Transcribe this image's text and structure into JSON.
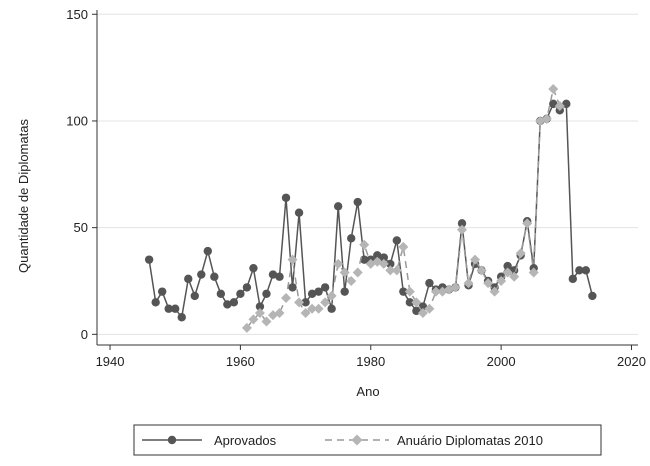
{
  "chart_data": {
    "type": "line",
    "xlabel": "Ano",
    "ylabel": "Quantidade de Diplomatas",
    "xlim": [
      1938,
      2021
    ],
    "ylim": [
      -5,
      152
    ],
    "xticks": [
      1940,
      1960,
      1980,
      2000,
      2020
    ],
    "yticks": [
      0,
      50,
      100,
      150
    ],
    "grid": true,
    "legend_position": "bottom",
    "series": [
      {
        "name": "Aprovados",
        "color": "#555555",
        "marker": "circle",
        "line": "solid",
        "x": [
          1946,
          1947,
          1948,
          1949,
          1950,
          1951,
          1952,
          1953,
          1954,
          1955,
          1956,
          1957,
          1958,
          1959,
          1960,
          1961,
          1962,
          1963,
          1964,
          1965,
          1966,
          1967,
          1968,
          1969,
          1970,
          1971,
          1972,
          1973,
          1974,
          1975,
          1976,
          1977,
          1978,
          1979,
          1980,
          1981,
          1982,
          1983,
          1984,
          1985,
          1986,
          1987,
          1988,
          1989,
          1990,
          1991,
          1992,
          1993,
          1994,
          1995,
          1996,
          1997,
          1998,
          1999,
          2000,
          2001,
          2002,
          2003,
          2004,
          2005,
          2006,
          2007,
          2008,
          2009,
          2010,
          2011,
          2012,
          2013,
          2014
        ],
        "y": [
          35,
          15,
          20,
          12,
          12,
          8,
          26,
          18,
          28,
          39,
          27,
          19,
          14,
          15,
          19,
          22,
          31,
          13,
          19,
          28,
          27,
          64,
          22,
          57,
          15,
          19,
          20,
          22,
          12,
          60,
          20,
          45,
          62,
          35,
          35,
          37,
          36,
          33,
          44,
          20,
          15,
          11,
          13,
          24,
          21,
          22,
          21,
          22,
          52,
          23,
          33,
          30,
          25,
          22,
          27,
          32,
          30,
          37,
          53,
          31,
          100,
          101,
          108,
          105,
          108,
          26,
          30,
          30,
          18
        ]
      },
      {
        "name": "Anuário Diplomatas 2010",
        "color": "#b5b5b5",
        "marker": "diamond",
        "line": "dashed",
        "x": [
          1961,
          1962,
          1963,
          1964,
          1965,
          1966,
          1967,
          1968,
          1969,
          1970,
          1971,
          1972,
          1973,
          1974,
          1975,
          1976,
          1977,
          1978,
          1979,
          1980,
          1981,
          1982,
          1983,
          1984,
          1985,
          1986,
          1987,
          1988,
          1989,
          1990,
          1991,
          1992,
          1993,
          1994,
          1995,
          1996,
          1997,
          1998,
          1999,
          2000,
          2001,
          2002,
          2003,
          2004,
          2005,
          2006,
          2007,
          2008,
          2009
        ],
        "y": [
          3,
          7,
          10,
          6,
          9,
          10,
          17,
          35,
          15,
          10,
          12,
          12,
          15,
          18,
          33,
          29,
          25,
          29,
          42,
          33,
          34,
          33,
          30,
          30,
          41,
          20,
          15,
          10,
          12,
          20,
          20,
          21,
          22,
          49,
          24,
          35,
          30,
          24,
          20,
          25,
          29,
          27,
          38,
          52,
          29,
          100,
          101,
          115,
          107
        ]
      }
    ]
  }
}
